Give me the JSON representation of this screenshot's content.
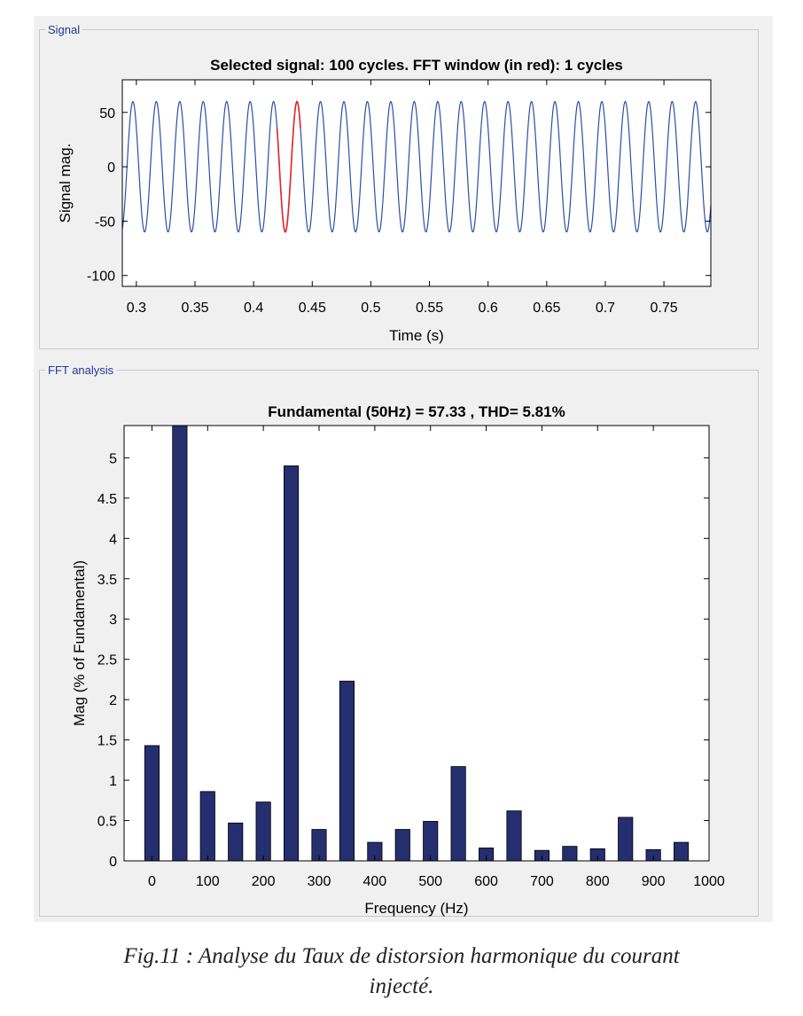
{
  "signal_panel": {
    "legend": "Signal"
  },
  "fft_panel": {
    "legend": "FFT analysis"
  },
  "caption": {
    "line1": "Fig.11 : Analyse du Taux de distorsion harmonique du courant",
    "line2": "injecté."
  },
  "colors": {
    "series": "#2b4fa8",
    "fft_window": "#e0262b",
    "bars": "#252e6e",
    "group_label": "#1f3a93"
  },
  "chart_data": [
    {
      "type": "line",
      "title": "Selected signal: 100 cycles. FFT window (in red): 1 cycles",
      "xlabel": "Time (s)",
      "ylabel": "Signal mag.",
      "xlim": [
        0.288,
        0.79
      ],
      "ylim": [
        -110,
        80
      ],
      "xticks": [
        0.3,
        0.35,
        0.4,
        0.45,
        0.5,
        0.55,
        0.6,
        0.65,
        0.7,
        0.75
      ],
      "xtick_labels": [
        "0.3",
        "0.35",
        "0.4",
        "0.45",
        "0.5",
        "0.55",
        "0.6",
        "0.65",
        "0.7",
        "0.75"
      ],
      "yticks": [
        -100,
        -50,
        0,
        50
      ],
      "ytick_labels": [
        "-100",
        "-50",
        "0",
        "50"
      ],
      "series": [
        {
          "kind": "sine",
          "frequency_hz": 50,
          "amplitude": 60,
          "phase_rad": 2.51,
          "x_start": 0.288,
          "x_end": 0.79
        },
        {
          "kind": "sine",
          "frequency_hz": 50,
          "amplitude": 60,
          "phase_rad": 2.51,
          "x_start": 0.42,
          "x_end": 0.44,
          "highlight": "fft_window"
        }
      ]
    },
    {
      "type": "bar",
      "title": "Fundamental (50Hz) = 57.33 , THD= 5.81%",
      "xlabel": "Frequency (Hz)",
      "ylabel": "Mag (% of Fundamental)",
      "xlim": [
        -50,
        1000
      ],
      "ylim": [
        0,
        5.4
      ],
      "xticks": [
        0,
        100,
        200,
        300,
        400,
        500,
        600,
        700,
        800,
        900,
        1000
      ],
      "xtick_labels": [
        "0",
        "100",
        "200",
        "300",
        "400",
        "500",
        "600",
        "700",
        "800",
        "900",
        "1000"
      ],
      "yticks": [
        0,
        0.5,
        1,
        1.5,
        2,
        2.5,
        3,
        3.5,
        4,
        4.5,
        5
      ],
      "ytick_labels": [
        "0",
        "0.5",
        "1",
        "1.5",
        "2",
        "2.5",
        "3",
        "3.5",
        "4",
        "4.5",
        "5"
      ],
      "bar_width_hz": 26,
      "x": [
        0,
        50,
        100,
        150,
        200,
        250,
        300,
        350,
        400,
        450,
        500,
        550,
        600,
        650,
        700,
        750,
        800,
        850,
        900,
        950
      ],
      "values": [
        1.43,
        5.4,
        0.86,
        0.47,
        0.73,
        4.9,
        0.39,
        2.23,
        0.23,
        0.39,
        0.49,
        1.17,
        0.16,
        0.62,
        0.13,
        0.18,
        0.15,
        0.54,
        0.14,
        0.23
      ],
      "grid": false
    }
  ]
}
